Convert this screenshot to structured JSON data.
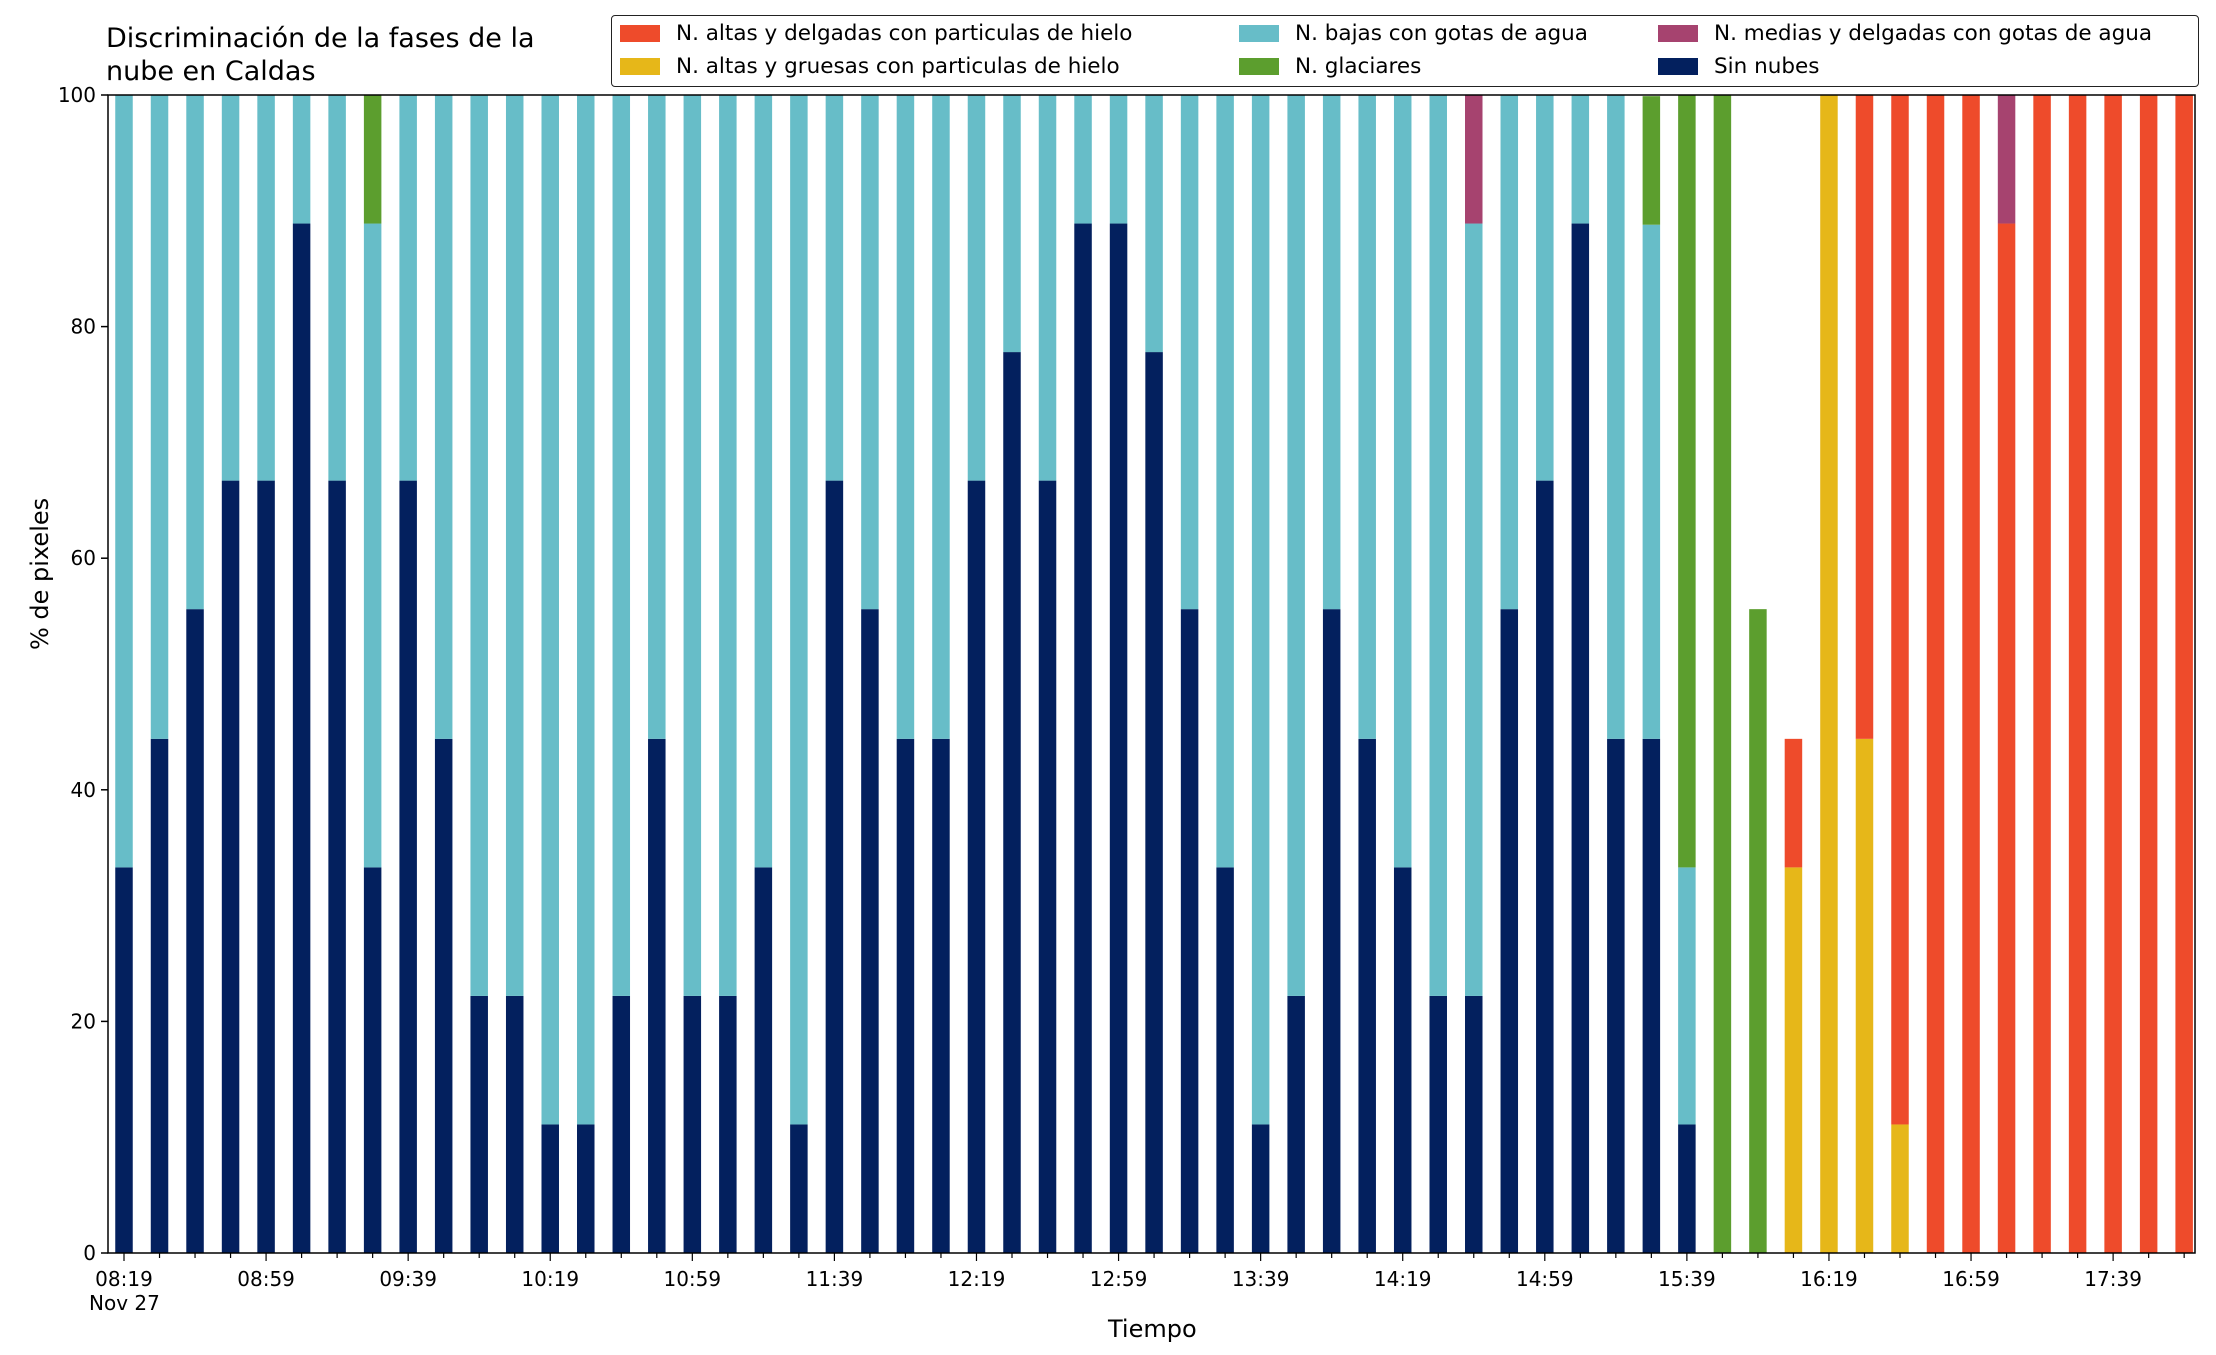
{
  "chart_data": {
    "type": "bar",
    "stacked": true,
    "title": "Discriminación de la fases de la\nnube en Caldas",
    "xlabel": "Tiempo",
    "ylabel": "% de pixeles",
    "ylim": [
      0,
      100
    ],
    "yticks": [
      0,
      20,
      40,
      60,
      80,
      100
    ],
    "xtick_labels": [
      "08:19\nNov 27",
      "08:59",
      "09:39",
      "10:19",
      "10:59",
      "11:39",
      "12:19",
      "12:59",
      "13:39",
      "14:19",
      "14:59",
      "15:39",
      "16:19",
      "16:59",
      "17:39"
    ],
    "legend_position": "top-right",
    "legend_columns": 3,
    "grid": false,
    "series": [
      {
        "name": "N. altas y delgadas con particulas de hielo",
        "color": "#ee4b2b",
        "values": [
          0,
          0,
          0,
          0,
          0,
          0,
          0,
          0,
          0,
          0,
          0,
          0,
          0,
          0,
          0,
          0,
          0,
          0,
          0,
          0,
          0,
          0,
          0,
          0,
          0,
          0,
          0,
          0,
          0,
          0,
          0,
          0,
          0,
          0,
          0,
          0,
          0,
          0,
          0,
          0,
          0,
          0,
          0,
          0,
          0,
          0,
          0,
          11.1,
          0,
          55.6,
          88.9,
          100,
          100,
          88.9,
          100,
          100,
          100,
          100,
          100
        ]
      },
      {
        "name": "N. altas y gruesas con particulas de hielo",
        "color": "#e6b719",
        "values": [
          0,
          0,
          0,
          0,
          0,
          0,
          0,
          0,
          0,
          0,
          0,
          0,
          0,
          0,
          0,
          0,
          0,
          0,
          0,
          0,
          0,
          0,
          0,
          0,
          0,
          0,
          0,
          0,
          0,
          0,
          0,
          0,
          0,
          0,
          0,
          0,
          0,
          0,
          0,
          0,
          0,
          0,
          0,
          0,
          0,
          0,
          0,
          33.3,
          100,
          44.4,
          11.1,
          0,
          0,
          0,
          0,
          0,
          0,
          0,
          0
        ]
      },
      {
        "name": "N. bajas con gotas de agua",
        "color": "#67bdc8",
        "values": [
          66.7,
          55.6,
          44.4,
          33.3,
          33.3,
          11.1,
          33.3,
          55.6,
          33.3,
          55.6,
          77.8,
          77.8,
          88.9,
          88.9,
          77.8,
          55.6,
          77.8,
          77.8,
          66.7,
          88.9,
          33.3,
          44.4,
          55.6,
          55.6,
          33.3,
          22.2,
          33.3,
          11.1,
          11.1,
          22.2,
          44.4,
          66.7,
          88.9,
          77.8,
          44.4,
          55.6,
          66.7,
          77.8,
          66.7,
          44.4,
          33.3,
          11.1,
          55.6,
          44.4,
          22.2,
          0,
          0,
          0,
          0,
          0,
          0,
          0,
          0,
          0,
          0,
          0,
          0,
          0,
          0
        ]
      },
      {
        "name": "N. glaciares",
        "color": "#5c9e2e",
        "values": [
          0,
          0,
          0,
          0,
          0,
          0,
          0,
          11.1,
          0,
          0,
          0,
          0,
          0,
          0,
          0,
          0,
          0,
          0,
          0,
          0,
          0,
          0,
          0,
          0,
          0,
          0,
          0,
          0,
          0,
          0,
          0,
          0,
          0,
          0,
          0,
          0,
          0,
          0,
          0,
          0,
          0,
          0,
          0,
          11.1,
          66.7,
          100,
          55.6,
          0,
          0,
          0,
          0,
          0,
          0,
          0,
          0,
          0,
          0,
          0,
          0
        ]
      },
      {
        "name": "N. medias y delgadas con gotas de agua",
        "color": "#a6436f",
        "values": [
          0,
          0,
          0,
          0,
          0,
          0,
          0,
          0,
          0,
          0,
          0,
          0,
          0,
          0,
          0,
          0,
          0,
          0,
          0,
          0,
          0,
          0,
          0,
          0,
          0,
          0,
          0,
          0,
          0,
          0,
          0,
          0,
          0,
          0,
          0,
          0,
          0,
          0,
          11.1,
          0,
          0,
          0,
          0,
          0,
          0,
          0,
          0,
          0,
          0,
          0,
          0,
          0,
          0,
          11.1,
          0,
          0,
          0,
          0,
          0
        ]
      },
      {
        "name": "Sin nubes",
        "color": "#03205e",
        "values": [
          33.3,
          44.4,
          55.6,
          66.7,
          66.7,
          88.9,
          66.7,
          33.3,
          66.7,
          44.4,
          22.2,
          22.2,
          11.1,
          11.1,
          22.2,
          44.4,
          22.2,
          22.2,
          33.3,
          11.1,
          66.7,
          55.6,
          44.4,
          44.4,
          66.7,
          77.8,
          66.7,
          88.9,
          88.9,
          77.8,
          55.6,
          33.3,
          11.1,
          22.2,
          55.6,
          44.4,
          33.3,
          22.2,
          22.2,
          55.6,
          66.7,
          88.9,
          44.4,
          44.4,
          11.1,
          0,
          0,
          0,
          0,
          0,
          0,
          0,
          0,
          0,
          0,
          0,
          0,
          0,
          0
        ]
      }
    ],
    "stack_order": [
      "Sin nubes",
      "N. bajas con gotas de agua",
      "N. glaciares",
      "N. altas y gruesas con particulas de hielo",
      "N. altas y delgadas con particulas de hielo",
      "N. medias y delgadas con gotas de agua"
    ]
  }
}
